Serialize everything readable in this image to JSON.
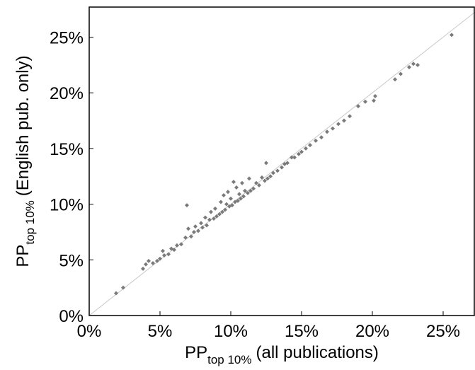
{
  "chart_data": {
    "type": "scatter",
    "x_label": [
      "PP",
      "top 10%",
      "(all publications)"
    ],
    "y_label": [
      "PP",
      "top 10%",
      "(English pub. only)"
    ],
    "xlim": [
      0,
      27.2
    ],
    "ylim": [
      0,
      27.7
    ],
    "xticks": [
      {
        "value": 0,
        "label": "0%"
      },
      {
        "value": 5,
        "label": "5%"
      },
      {
        "value": 10,
        "label": "10%"
      },
      {
        "value": 15,
        "label": "15%"
      },
      {
        "value": 20,
        "label": "20%"
      },
      {
        "value": 25,
        "label": "25%"
      }
    ],
    "yticks": [
      {
        "value": 0,
        "label": "0%"
      },
      {
        "value": 5,
        "label": "5%"
      },
      {
        "value": 10,
        "label": "10%"
      },
      {
        "value": 15,
        "label": "15%"
      },
      {
        "value": 20,
        "label": "20%"
      },
      {
        "value": 25,
        "label": "25%"
      }
    ],
    "diagonal": true,
    "color": "#7a7a7a",
    "x": [
      1.9,
      2.4,
      3.8,
      4.0,
      4.2,
      4.5,
      4.8,
      5.0,
      5.2,
      5.3,
      5.6,
      5.8,
      6.0,
      6.2,
      6.5,
      6.8,
      6.9,
      7.0,
      7.2,
      7.4,
      7.5,
      7.7,
      7.9,
      8.0,
      8.2,
      8.3,
      8.5,
      8.6,
      8.8,
      8.9,
      9.0,
      9.2,
      9.3,
      9.4,
      9.5,
      9.6,
      9.7,
      9.8,
      9.9,
      10.0,
      10.1,
      10.2,
      10.3,
      10.4,
      10.5,
      10.6,
      10.7,
      10.8,
      10.9,
      11.0,
      11.2,
      11.3,
      11.4,
      11.6,
      11.8,
      12.0,
      12.2,
      12.4,
      12.5,
      12.6,
      12.8,
      13.0,
      13.3,
      13.6,
      13.8,
      14.0,
      14.3,
      14.5,
      14.8,
      15.0,
      15.3,
      15.6,
      16.0,
      16.4,
      16.8,
      17.2,
      17.6,
      18.0,
      18.4,
      19.0,
      19.5,
      20.1,
      20.2,
      21.6,
      22.0,
      22.6,
      22.9,
      23.2,
      25.6
    ],
    "values": [
      2.0,
      2.5,
      4.2,
      4.6,
      4.9,
      4.7,
      4.9,
      5.1,
      5.8,
      5.4,
      5.5,
      6.0,
      5.9,
      6.3,
      6.4,
      7.0,
      9.9,
      7.8,
      7.1,
      7.5,
      8.0,
      7.6,
      8.3,
      7.9,
      8.8,
      8.1,
      8.6,
      9.3,
      8.7,
      9.6,
      8.9,
      9.1,
      10.2,
      9.3,
      10.8,
      9.5,
      10.0,
      11.1,
      9.8,
      10.5,
      9.9,
      12.0,
      10.2,
      11.5,
      10.3,
      10.9,
      10.5,
      11.9,
      10.7,
      11.2,
      11.0,
      12.3,
      11.2,
      11.4,
      11.9,
      11.7,
      12.4,
      12.1,
      13.7,
      12.3,
      12.5,
      12.8,
      13.0,
      13.3,
      13.6,
      13.7,
      14.2,
      14.2,
      14.5,
      14.7,
      15.0,
      15.3,
      15.7,
      16.0,
      16.5,
      16.8,
      17.2,
      17.5,
      17.9,
      18.8,
      19.2,
      19.3,
      19.7,
      21.2,
      21.7,
      22.3,
      22.6,
      22.5,
      25.2
    ]
  }
}
